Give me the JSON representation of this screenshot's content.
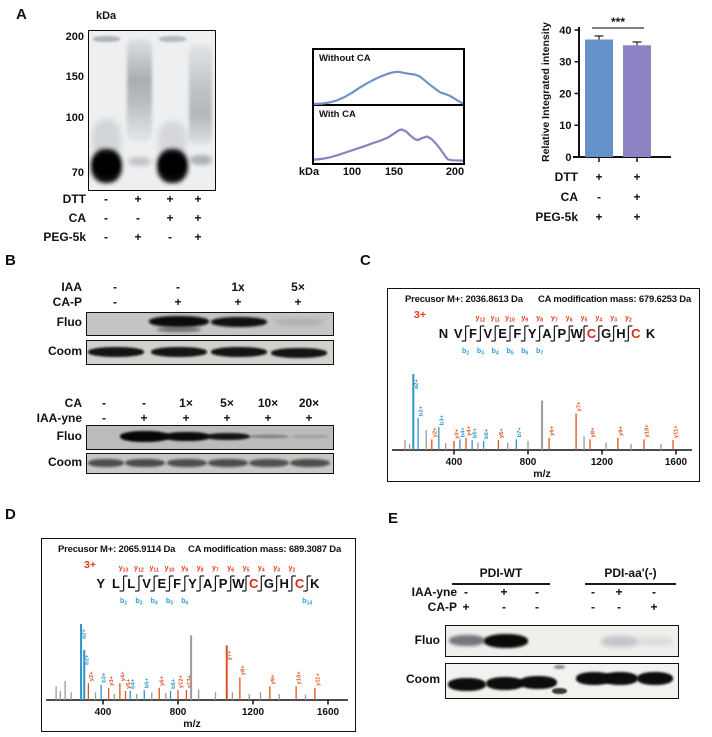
{
  "panelA": {
    "label": "A",
    "gel": {
      "kda": "kDa",
      "markers": [
        "200",
        "150",
        "100",
        "70"
      ],
      "rows": [
        {
          "label": "DTT",
          "signs": [
            "-",
            "+",
            "+",
            "+"
          ]
        },
        {
          "label": "CA",
          "signs": [
            "-",
            "-",
            "+",
            "+"
          ]
        },
        {
          "label": "PEG-5k",
          "signs": [
            "-",
            "+",
            "-",
            "+"
          ]
        }
      ]
    },
    "profiles": {
      "axis": "kDa",
      "ticks": [
        "100",
        "150",
        "200"
      ]
    }
  },
  "panelB": {
    "label": "B",
    "top": {
      "fluo": "Fluo",
      "coom": "Coom",
      "rows": [
        {
          "label": "IAA",
          "signs": [
            "-",
            "-",
            "1x",
            "5×"
          ]
        },
        {
          "label": "CA-P",
          "signs": [
            "-",
            "+",
            "+",
            "+"
          ]
        }
      ]
    },
    "bottom": {
      "fluo": "Fluo",
      "coom": "Coom",
      "rows": [
        {
          "label": "CA",
          "signs": [
            "-",
            "-",
            "1×",
            "5×",
            "10×",
            "20×"
          ]
        },
        {
          "label": "IAA-yne",
          "signs": [
            "-",
            "+",
            "+",
            "+",
            "+",
            "+"
          ]
        }
      ]
    }
  },
  "panelC": {
    "label": "C"
  },
  "panelD": {
    "label": "D"
  },
  "panelE": {
    "label": "E",
    "fluo": "Fluo",
    "coom": "Coom",
    "groups": [
      "PDI-WT",
      "PDI-aa'(-)"
    ],
    "rows": [
      {
        "label": "IAA-yne",
        "signs": [
          "-",
          "+",
          "-",
          "-",
          "+",
          "-"
        ]
      },
      {
        "label": "CA-P",
        "signs": [
          "+",
          "-",
          "-",
          "-",
          "-",
          "+"
        ]
      }
    ]
  },
  "chart_data": [
    {
      "id": "intensity_bar",
      "type": "bar",
      "ylabel": "Relative Integrated intensity",
      "ylim": [
        0,
        40
      ],
      "yticks": [
        0,
        10,
        20,
        30,
        40
      ],
      "values": [
        37.0,
        35.2
      ],
      "errors": [
        0.5,
        0.4
      ],
      "bar_colors": [
        "#6590c8",
        "#8d82c4"
      ],
      "significance": "***",
      "conditions": [
        {
          "label": "DTT",
          "signs": [
            "+",
            "+"
          ]
        },
        {
          "label": "CA",
          "signs": [
            "-",
            "+"
          ]
        },
        {
          "label": "PEG-5k",
          "signs": [
            "+",
            "+"
          ]
        }
      ]
    },
    {
      "id": "profile_without_ca",
      "type": "line",
      "label": "Without CA",
      "color": "#6f93c8",
      "xlabel": "kDa",
      "xticks": [
        "100",
        "150",
        "200"
      ],
      "points": [
        [
          0,
          0.03
        ],
        [
          0.05,
          0.04
        ],
        [
          0.1,
          0.07
        ],
        [
          0.15,
          0.13
        ],
        [
          0.2,
          0.22
        ],
        [
          0.25,
          0.34
        ],
        [
          0.3,
          0.48
        ],
        [
          0.35,
          0.61
        ],
        [
          0.4,
          0.72
        ],
        [
          0.45,
          0.82
        ],
        [
          0.5,
          0.9
        ],
        [
          0.54,
          0.94
        ],
        [
          0.57,
          0.95
        ],
        [
          0.6,
          0.92
        ],
        [
          0.64,
          0.89
        ],
        [
          0.68,
          0.87
        ],
        [
          0.71,
          0.82
        ],
        [
          0.74,
          0.72
        ],
        [
          0.78,
          0.58
        ],
        [
          0.82,
          0.45
        ],
        [
          0.85,
          0.36
        ],
        [
          0.88,
          0.32
        ],
        [
          0.91,
          0.27
        ],
        [
          0.94,
          0.2
        ],
        [
          0.97,
          0.12
        ],
        [
          1,
          0.05
        ]
      ]
    },
    {
      "id": "profile_with_ca",
      "type": "line",
      "label": "With CA",
      "color": "#8d7fc0",
      "xlabel": "kDa",
      "xticks": [
        "100",
        "150",
        "200"
      ],
      "points": [
        [
          0,
          0.04
        ],
        [
          0.05,
          0.06
        ],
        [
          0.1,
          0.1
        ],
        [
          0.15,
          0.16
        ],
        [
          0.2,
          0.23
        ],
        [
          0.25,
          0.3
        ],
        [
          0.3,
          0.37
        ],
        [
          0.35,
          0.44
        ],
        [
          0.4,
          0.52
        ],
        [
          0.45,
          0.59
        ],
        [
          0.5,
          0.68
        ],
        [
          0.54,
          0.79
        ],
        [
          0.57,
          0.88
        ],
        [
          0.59,
          0.9
        ],
        [
          0.62,
          0.84
        ],
        [
          0.65,
          0.72
        ],
        [
          0.68,
          0.62
        ],
        [
          0.7,
          0.6
        ],
        [
          0.73,
          0.66
        ],
        [
          0.76,
          0.7
        ],
        [
          0.79,
          0.63
        ],
        [
          0.82,
          0.5
        ],
        [
          0.85,
          0.34
        ],
        [
          0.88,
          0.16
        ],
        [
          0.9,
          0.05
        ],
        [
          0.93,
          0.02
        ],
        [
          1,
          0.01
        ]
      ]
    },
    {
      "id": "spectrum_c",
      "type": "ms2",
      "precursor_label": "Precusor M+: 2036.8613 Da",
      "modification_label": "CA modification mass: 679.6253 Da",
      "charge": "3+",
      "sequence": "NVFVEFYAPWCGHCK",
      "red_residues": [
        10,
        13
      ],
      "divider_gaps": [
        1,
        2,
        3,
        4,
        5,
        6,
        7,
        8,
        9,
        10,
        11,
        12
      ],
      "y_ions": [
        {
          "label": "y12",
          "gap": 2
        },
        {
          "label": "y11",
          "gap": 3
        },
        {
          "label": "y10",
          "gap": 4
        },
        {
          "label": "y9",
          "gap": 5
        },
        {
          "label": "y8",
          "gap": 6
        },
        {
          "label": "y7",
          "gap": 7
        },
        {
          "label": "y6",
          "gap": 8
        },
        {
          "label": "y5",
          "gap": 9
        },
        {
          "label": "y4",
          "gap": 10
        },
        {
          "label": "y3",
          "gap": 11
        },
        {
          "label": "y2",
          "gap": 12
        }
      ],
      "b_ions": [
        {
          "label": "b2",
          "gap": 1
        },
        {
          "label": "b3",
          "gap": 2
        },
        {
          "label": "b4",
          "gap": 3
        },
        {
          "label": "b5",
          "gap": 4
        },
        {
          "label": "b6",
          "gap": 5
        },
        {
          "label": "b7",
          "gap": 6
        }
      ],
      "xlabel": "m/z",
      "xticks": [
        400,
        800,
        1200,
        1600
      ],
      "xlim": [
        100,
        1700
      ],
      "peaks": [
        {
          "mz": 135,
          "i": 13,
          "s": "x"
        },
        {
          "mz": 160,
          "i": 8,
          "s": "x"
        },
        {
          "mz": 180,
          "i": 100,
          "s": "b",
          "label": "a2+"
        },
        {
          "mz": 206,
          "i": 42,
          "s": "b",
          "label": "b2+"
        },
        {
          "mz": 250,
          "i": 26,
          "s": "x"
        },
        {
          "mz": 280,
          "i": 14,
          "s": "y",
          "label": "y2+"
        },
        {
          "mz": 318,
          "i": 30,
          "s": "b",
          "label": "b3+"
        },
        {
          "mz": 355,
          "i": 9,
          "s": "x"
        },
        {
          "mz": 400,
          "i": 12,
          "s": "y",
          "label": "y3+"
        },
        {
          "mz": 432,
          "i": 14,
          "s": "b",
          "label": "b4+"
        },
        {
          "mz": 465,
          "i": 16,
          "s": "y",
          "label": "y4+"
        },
        {
          "mz": 498,
          "i": 13,
          "s": "b",
          "label": "b5+"
        },
        {
          "mz": 530,
          "i": 10,
          "s": "x"
        },
        {
          "mz": 560,
          "i": 12,
          "s": "b",
          "label": "b6+"
        },
        {
          "mz": 640,
          "i": 13,
          "s": "y",
          "label": "y5+"
        },
        {
          "mz": 690,
          "i": 10,
          "s": "x"
        },
        {
          "mz": 737,
          "i": 14,
          "s": "b",
          "label": "b7+"
        },
        {
          "mz": 800,
          "i": 12,
          "s": "x"
        },
        {
          "mz": 876,
          "i": 65,
          "s": "x"
        },
        {
          "mz": 914,
          "i": 16,
          "s": "y",
          "label": "y6+"
        },
        {
          "mz": 1060,
          "i": 48,
          "s": "y",
          "label": "y7+"
        },
        {
          "mz": 1103,
          "i": 18,
          "s": "x"
        },
        {
          "mz": 1135,
          "i": 14,
          "s": "y",
          "label": "y8+"
        },
        {
          "mz": 1222,
          "i": 10,
          "s": "x"
        },
        {
          "mz": 1286,
          "i": 16,
          "s": "y",
          "label": "y9+"
        },
        {
          "mz": 1357,
          "i": 8,
          "s": "x"
        },
        {
          "mz": 1427,
          "i": 14,
          "s": "y",
          "label": "y10+"
        },
        {
          "mz": 1519,
          "i": 8,
          "s": "x"
        },
        {
          "mz": 1584,
          "i": 13,
          "s": "y",
          "label": "y11+"
        }
      ]
    },
    {
      "id": "spectrum_d",
      "type": "ms2",
      "precursor_label": "Precusor M+: 2065.9114 Da",
      "modification_label": "CA modification mass: 689.3087 Da",
      "charge": "3+",
      "sequence": "YLLVEFYAPWCGHCK",
      "red_residues": [
        10,
        13
      ],
      "divider_gaps": [
        1,
        2,
        3,
        4,
        5,
        6,
        7,
        8,
        9,
        10,
        11,
        12,
        13
      ],
      "y_ions": [
        {
          "label": "y13",
          "gap": 1
        },
        {
          "label": "y12",
          "gap": 2
        },
        {
          "label": "y11",
          "gap": 3
        },
        {
          "label": "y10",
          "gap": 4
        },
        {
          "label": "y9",
          "gap": 5
        },
        {
          "label": "y8",
          "gap": 6
        },
        {
          "label": "y7",
          "gap": 7
        },
        {
          "label": "y6",
          "gap": 8
        },
        {
          "label": "y5",
          "gap": 9
        },
        {
          "label": "y4",
          "gap": 10
        },
        {
          "label": "y3",
          "gap": 11
        },
        {
          "label": "y2",
          "gap": 12
        }
      ],
      "b_ions": [
        {
          "label": "b2",
          "gap": 1
        },
        {
          "label": "b3",
          "gap": 2
        },
        {
          "label": "b4",
          "gap": 3
        },
        {
          "label": "b5",
          "gap": 4
        },
        {
          "label": "b6",
          "gap": 5
        },
        {
          "label": "b14",
          "gap": 13
        }
      ],
      "xlabel": "m/z",
      "xticks": [
        400,
        800,
        1200,
        1600
      ],
      "xlim": [
        100,
        1700
      ],
      "peaks": [
        {
          "mz": 150,
          "i": 18,
          "s": "x"
        },
        {
          "mz": 172,
          "i": 12,
          "s": "x"
        },
        {
          "mz": 198,
          "i": 25,
          "s": "x"
        },
        {
          "mz": 230,
          "i": 10,
          "s": "x"
        },
        {
          "mz": 283,
          "i": 100,
          "s": "b",
          "label": "a2+"
        },
        {
          "mz": 300,
          "i": 66,
          "s": "b",
          "label": "b2+"
        },
        {
          "mz": 322,
          "i": 22,
          "s": "y",
          "label": "y2+"
        },
        {
          "mz": 360,
          "i": 10,
          "s": "x"
        },
        {
          "mz": 390,
          "i": 20,
          "s": "b",
          "label": "b3+"
        },
        {
          "mz": 430,
          "i": 16,
          "s": "y",
          "label": "y3+"
        },
        {
          "mz": 460,
          "i": 8,
          "s": "x"
        },
        {
          "mz": 490,
          "i": 22,
          "s": "y",
          "label": "y4+"
        },
        {
          "mz": 520,
          "i": 12,
          "s": "y",
          "label": "y5+"
        },
        {
          "mz": 545,
          "i": 12,
          "s": "b",
          "label": "b4+"
        },
        {
          "mz": 580,
          "i": 8,
          "s": "x"
        },
        {
          "mz": 620,
          "i": 13,
          "s": "b",
          "label": "b5+"
        },
        {
          "mz": 660,
          "i": 10,
          "s": "x"
        },
        {
          "mz": 700,
          "i": 16,
          "s": "y",
          "label": "y6+"
        },
        {
          "mz": 735,
          "i": 9,
          "s": "x"
        },
        {
          "mz": 760,
          "i": 12,
          "s": "b",
          "label": "b6+"
        },
        {
          "mz": 800,
          "i": 13,
          "s": "y",
          "label": "y12+"
        },
        {
          "mz": 845,
          "i": 13,
          "s": "y",
          "label": "y13+"
        },
        {
          "mz": 870,
          "i": 85,
          "s": "x"
        },
        {
          "mz": 910,
          "i": 14,
          "s": "x"
        },
        {
          "mz": 1000,
          "i": 10,
          "s": "x"
        },
        {
          "mz": 1060,
          "i": 72,
          "s": "y",
          "label": "y7+"
        },
        {
          "mz": 1090,
          "i": 10,
          "s": "x"
        },
        {
          "mz": 1130,
          "i": 30,
          "s": "y",
          "label": "y8+"
        },
        {
          "mz": 1180,
          "i": 8,
          "s": "x"
        },
        {
          "mz": 1240,
          "i": 10,
          "s": "x"
        },
        {
          "mz": 1290,
          "i": 18,
          "s": "y",
          "label": "y9+"
        },
        {
          "mz": 1340,
          "i": 8,
          "s": "x"
        },
        {
          "mz": 1430,
          "i": 18,
          "s": "y",
          "label": "y10+"
        },
        {
          "mz": 1480,
          "i": 7,
          "s": "x"
        },
        {
          "mz": 1530,
          "i": 16,
          "s": "y",
          "label": "y11+"
        }
      ]
    }
  ]
}
